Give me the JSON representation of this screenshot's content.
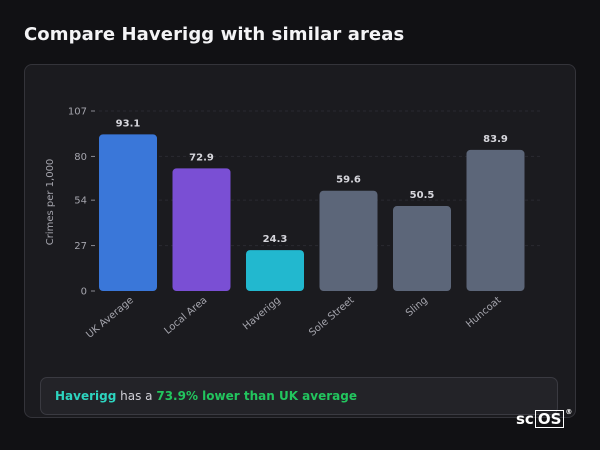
{
  "page": {
    "title": "Compare Haverigg with similar areas"
  },
  "summary": {
    "area_name": "Haverigg",
    "text_mid": "has a",
    "delta_text": "73.9% lower than UK average"
  },
  "logo": {
    "text_left": "sc",
    "text_boxed": "OS",
    "mark": "®"
  },
  "colors": {
    "uk_average": "#3a77d9",
    "local_area": "#7a4fd4",
    "haverigg": "#22b8cf",
    "similar_area": "#5c6679",
    "summary_area": "#2dd4bf",
    "summary_delta": "#22c55e"
  },
  "chart_data": {
    "type": "bar",
    "title": "",
    "xlabel": "",
    "ylabel": "Crimes per 1,000",
    "ylim": [
      0,
      107
    ],
    "yticks": [
      0,
      27,
      54,
      80,
      107
    ],
    "grid": true,
    "categories": [
      "UK Average",
      "Local Area",
      "Haverigg",
      "Sole Street",
      "Sling",
      "Huncoat"
    ],
    "values": [
      93.1,
      72.9,
      24.3,
      59.6,
      50.5,
      83.9
    ],
    "value_labels": [
      "93.1",
      "72.9",
      "24.3",
      "59.6",
      "50.5",
      "83.9"
    ],
    "bar_colors": [
      "#3a77d9",
      "#7a4fd4",
      "#22b8cf",
      "#5c6679",
      "#5c6679",
      "#5c6679"
    ]
  }
}
